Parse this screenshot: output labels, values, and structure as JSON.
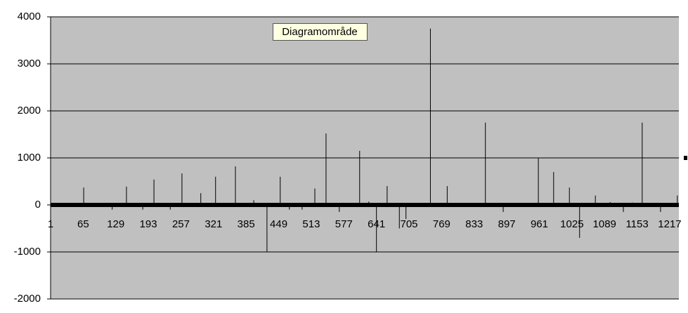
{
  "chart_data": {
    "type": "bar",
    "x": [
      26,
      66,
      96,
      122,
      150,
      182,
      204,
      236,
      259,
      296,
      325,
      364,
      400,
      426,
      452,
      470,
      495,
      520,
      542,
      568,
      608,
      626,
      641,
      662,
      686,
      699,
      747,
      780,
      820,
      855,
      890,
      959,
      989,
      1020,
      1040,
      1071,
      1100,
      1126,
      1144,
      1163,
      1199,
      1232
    ],
    "values": [
      30,
      370,
      30,
      -100,
      390,
      -100,
      540,
      -100,
      670,
      250,
      600,
      820,
      100,
      -1000,
      600,
      -100,
      -100,
      350,
      1520,
      -150,
      1150,
      70,
      -1000,
      400,
      -500,
      -300,
      3750,
      400,
      40,
      1750,
      -150,
      1000,
      700,
      370,
      -700,
      200,
      60,
      -150,
      50,
      1750,
      -150,
      200
    ],
    "color": "#000000",
    "xlim": [
      1,
      1235
    ],
    "xticks": [
      1,
      65,
      129,
      193,
      257,
      321,
      385,
      449,
      513,
      577,
      641,
      705,
      769,
      833,
      897,
      961,
      1025,
      1089,
      1153,
      1217
    ],
    "ylim": [
      -2000,
      4000
    ],
    "yticks": [
      -2000,
      -1000,
      0,
      1000,
      2000,
      3000,
      4000
    ],
    "grid": true,
    "tooltip": "Diagramområde"
  }
}
